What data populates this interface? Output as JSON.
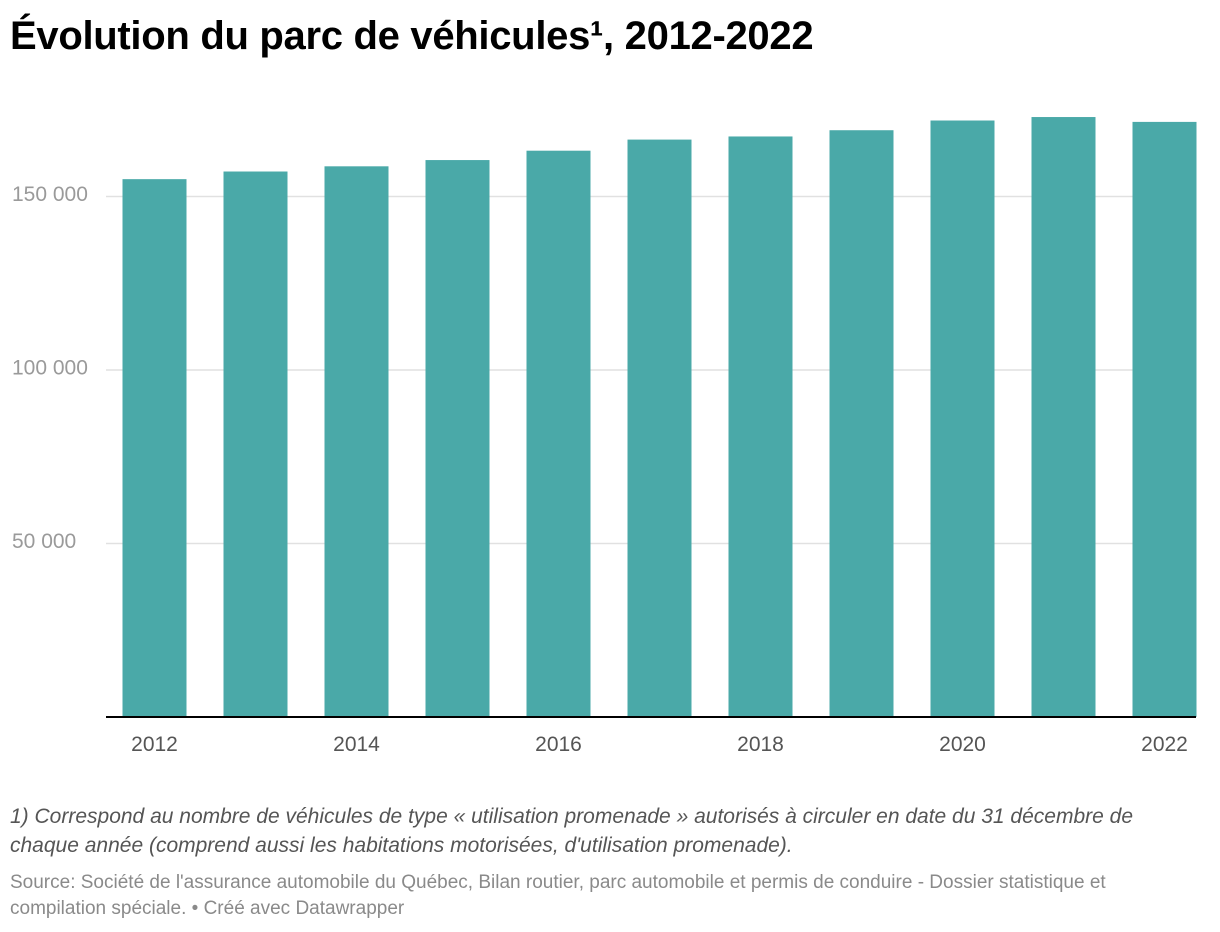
{
  "title": "Évolution du parc de véhicules¹, 2012-2022",
  "notes": "1) Correspond au nombre de véhicules de type « utilisation promenade » autorisés à circuler en date du 31 décembre de chaque année (comprend aussi les habitations motorisées, d'utilisation promenade).",
  "source": "Source: Société de l'assurance automobile du Québec, Bilan routier, parc automobile et permis de conduire - Dossier statistique et compilation spéciale. • Créé avec Datawrapper",
  "chart_data": {
    "type": "bar",
    "categories": [
      "2012",
      "2013",
      "2014",
      "2015",
      "2016",
      "2017",
      "2018",
      "2019",
      "2020",
      "2021",
      "2022"
    ],
    "values": [
      155000,
      157200,
      158700,
      160500,
      163200,
      166400,
      167300,
      169100,
      171900,
      172900,
      171500
    ],
    "x_tick_labels": [
      "2012",
      "2014",
      "2016",
      "2018",
      "2020",
      "2022"
    ],
    "y_tick_labels": [
      "50 000",
      "100 000",
      "150 000"
    ],
    "y_ticks": [
      50000,
      100000,
      150000
    ],
    "ylim": [
      0,
      175000
    ],
    "grid": true,
    "bar_color": "#4aa9a8",
    "grid_color": "#e1e1e1",
    "axis_color": "#000000"
  }
}
